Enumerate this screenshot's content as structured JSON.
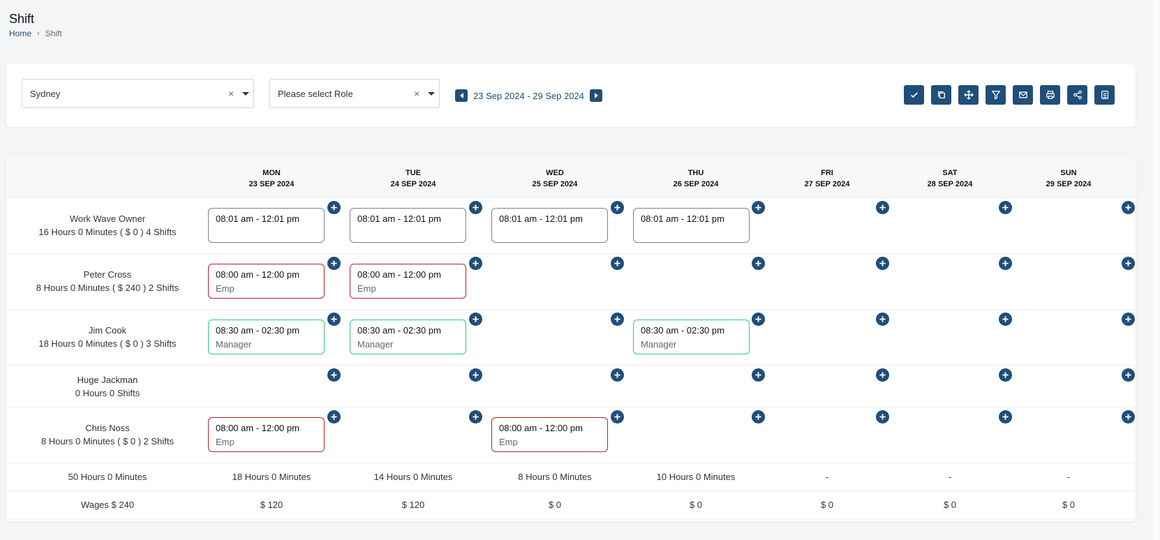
{
  "page": {
    "title": "Shift",
    "breadcrumb": {
      "home": "Home",
      "separator": "›",
      "current": "Shift"
    }
  },
  "filters": {
    "location": {
      "value": "Sydney",
      "clear": "×"
    },
    "role": {
      "value": "Please select Role",
      "clear": "×"
    },
    "date_range": "23 Sep 2024 - 29 Sep 2024"
  },
  "toolbar_icons": [
    "check-icon",
    "copy-icon",
    "move-icon",
    "filter-icon",
    "mail-icon",
    "print-icon",
    "share-icon",
    "export-icon"
  ],
  "days": [
    {
      "dow": "MON",
      "date": "23 SEP 2024"
    },
    {
      "dow": "TUE",
      "date": "24 SEP 2024"
    },
    {
      "dow": "WED",
      "date": "25 SEP 2024"
    },
    {
      "dow": "THU",
      "date": "26 SEP 2024"
    },
    {
      "dow": "FRI",
      "date": "27 SEP 2024"
    },
    {
      "dow": "SAT",
      "date": "28 SEP 2024"
    },
    {
      "dow": "SUN",
      "date": "29 SEP 2024"
    }
  ],
  "employees": [
    {
      "name": "Work Wave Owner",
      "summary": "16 Hours 0 Minutes ( $ 0 ) 4 Shifts",
      "shifts": [
        {
          "time": "08:01 am - 12:01 pm",
          "role": ""
        },
        {
          "time": "08:01 am - 12:01 pm",
          "role": ""
        },
        {
          "time": "08:01 am - 12:01 pm",
          "role": ""
        },
        {
          "time": "08:01 am - 12:01 pm",
          "role": ""
        },
        null,
        null,
        null
      ]
    },
    {
      "name": "Peter Cross",
      "summary": "8 Hours 0 Minutes ( $ 240 ) 2 Shifts",
      "shifts": [
        {
          "time": "08:00 am - 12:00 pm",
          "role": "Emp"
        },
        {
          "time": "08:00 am - 12:00 pm",
          "role": "Emp"
        },
        null,
        null,
        null,
        null,
        null
      ]
    },
    {
      "name": "Jim Cook",
      "summary": "18 Hours 0 Minutes ( $ 0 ) 3 Shifts",
      "shifts": [
        {
          "time": "08:30 am - 02:30 pm",
          "role": "Manager"
        },
        {
          "time": "08:30 am - 02:30 pm",
          "role": "Manager"
        },
        null,
        {
          "time": "08:30 am - 02:30 pm",
          "role": "Manager"
        },
        null,
        null,
        null
      ]
    },
    {
      "name": "Huge Jackman",
      "summary": "0 Hours 0 Shifts",
      "shifts": [
        null,
        null,
        null,
        null,
        null,
        null,
        null
      ]
    },
    {
      "name": "Chris Noss",
      "summary": "8 Hours 0 Minutes ( $ 0 ) 2 Shifts",
      "shifts": [
        {
          "time": "08:00 am - 12:00 pm",
          "role": "Emp"
        },
        null,
        {
          "time": "08:00 am - 12:00 pm",
          "role": "Emp"
        },
        null,
        null,
        null,
        null
      ]
    }
  ],
  "totals": {
    "hours_label": "50 Hours 0 Minutes",
    "hours": [
      "18 Hours 0 Minutes",
      "14 Hours 0 Minutes",
      "8 Hours 0 Minutes",
      "10 Hours 0 Minutes",
      "-",
      "-",
      "-"
    ],
    "wages_label": "Wages $ 240",
    "wages": [
      "$ 120",
      "$ 120",
      "$ 0",
      "$ 0",
      "$ 0",
      "$ 0",
      "$ 0"
    ]
  },
  "colors": {
    "primary": "#1f4e79",
    "emp_border": "#b4232a",
    "manager_border": "#2ecc71",
    "default_border": "#7a8390"
  }
}
